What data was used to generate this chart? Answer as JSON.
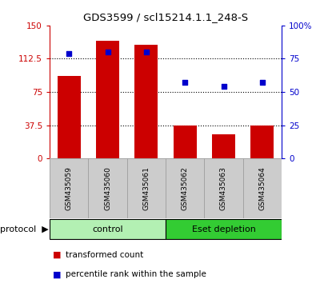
{
  "title": "GDS3599 / scl15214.1.1_248-S",
  "samples": [
    "GSM435059",
    "GSM435060",
    "GSM435061",
    "GSM435062",
    "GSM435063",
    "GSM435064"
  ],
  "bar_values": [
    93,
    133,
    128,
    37,
    27,
    37
  ],
  "dot_values": [
    79,
    80,
    80,
    57,
    54,
    57
  ],
  "bar_color": "#cc0000",
  "dot_color": "#0000cc",
  "ylim_left": [
    0,
    150
  ],
  "ylim_right": [
    0,
    100
  ],
  "yticks_left": [
    0,
    37.5,
    75,
    112.5,
    150
  ],
  "ytick_labels_left": [
    "0",
    "37.5",
    "75",
    "112.5",
    "150"
  ],
  "yticks_right": [
    0,
    25,
    50,
    75,
    100
  ],
  "ytick_labels_right": [
    "0",
    "25",
    "50",
    "75",
    "100%"
  ],
  "hlines": [
    37.5,
    75,
    112.5
  ],
  "groups": [
    {
      "label": "control",
      "indices": [
        0,
        1,
        2
      ],
      "color": "#b3f0b3"
    },
    {
      "label": "Eset depletion",
      "indices": [
        3,
        4,
        5
      ],
      "color": "#33cc33"
    }
  ],
  "protocol_label": "protocol",
  "legend_bar_label": "transformed count",
  "legend_dot_label": "percentile rank within the sample",
  "bar_width": 0.6,
  "background_color": "#ffffff",
  "sample_bg_color": "#cccccc",
  "sample_border_color": "#999999"
}
